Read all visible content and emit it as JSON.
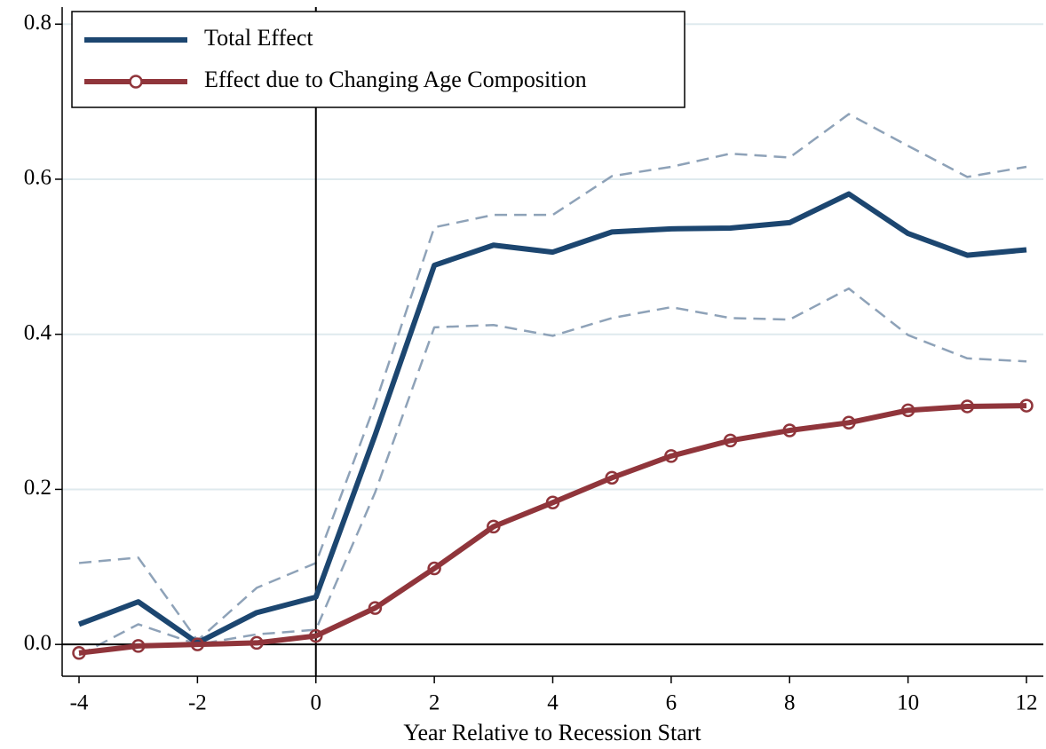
{
  "chart_data": {
    "type": "line",
    "x_label": "Year Relative to Recession Start",
    "x": [
      -4,
      -3,
      -2,
      -1,
      0,
      1,
      2,
      3,
      4,
      5,
      6,
      7,
      8,
      9,
      10,
      11,
      12
    ],
    "xlim": [
      -4.285,
      12.285
    ],
    "xticks": [
      -4,
      -2,
      0,
      2,
      4,
      6,
      8,
      10,
      12
    ],
    "ylim": [
      -0.041,
      0.822
    ],
    "yticks": [
      {
        "value": 0,
        "label": "0.0"
      },
      0.2,
      0.4,
      0.6,
      0.8
    ],
    "grid": true,
    "reference_lines": {
      "x": 0,
      "y": 0
    },
    "legend": "top-left",
    "series": [
      {
        "color": "#8ea2b8",
        "dashed": true,
        "values": [
          0.105,
          0.112,
          0.005,
          0.073,
          0.105,
          0.31,
          0.538,
          0.554,
          0.554,
          0.604,
          0.616,
          0.633,
          0.628,
          0.684,
          0.643,
          0.603,
          0.616
        ]
      },
      {
        "color": "#8ea2b8",
        "dashed": true,
        "values": [
          -0.014,
          0.026,
          0.0,
          0.013,
          0.019,
          0.196,
          0.409,
          0.412,
          0.398,
          0.421,
          0.435,
          0.421,
          0.419,
          0.459,
          0.399,
          0.369,
          0.365
        ]
      },
      {
        "name": "Total Effect",
        "color": "#1c4670",
        "values": [
          0.026,
          0.055,
          0.002,
          0.041,
          0.061,
          0.27,
          0.489,
          0.515,
          0.506,
          0.532,
          0.536,
          0.537,
          0.544,
          0.581,
          0.53,
          0.502,
          0.509
        ]
      },
      {
        "name": "Effect due to Changing Age Composition",
        "color": "#90353b",
        "markers": true,
        "values": [
          -0.011,
          -0.002,
          0.0,
          0.002,
          0.011,
          0.047,
          0.098,
          0.152,
          0.183,
          0.215,
          0.243,
          0.263,
          0.276,
          0.286,
          0.302,
          0.307,
          0.308
        ]
      }
    ]
  }
}
